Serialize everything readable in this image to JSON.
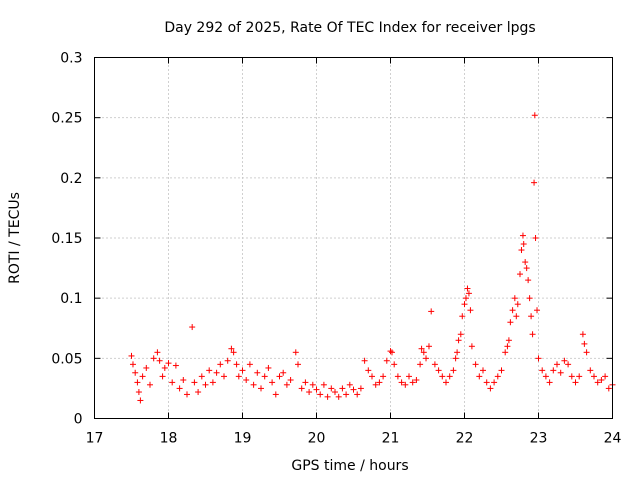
{
  "chart_data": {
    "type": "scatter",
    "title": "Day 292 of 2025, Rate Of TEC Index for receiver lpgs",
    "xlabel": "GPS time / hours",
    "ylabel": "ROTI / TECUs",
    "xlim": [
      17,
      24
    ],
    "ylim": [
      0,
      0.3
    ],
    "xticks": [
      17,
      18,
      19,
      20,
      21,
      22,
      23,
      24
    ],
    "xtick_labels": [
      "17",
      "18",
      "19",
      "20",
      "21",
      "22",
      "23",
      "24"
    ],
    "yticks": [
      0,
      0.05,
      0.1,
      0.15,
      0.2,
      0.25,
      0.3
    ],
    "ytick_labels": [
      "0",
      "0.05",
      "0.1",
      "0.15",
      "0.2",
      "0.25",
      "0.3"
    ],
    "grid": true,
    "marker": "plus",
    "series": [
      {
        "name": "ROTI",
        "color": "#ff0000",
        "points": [
          [
            17.5,
            0.052
          ],
          [
            17.52,
            0.045
          ],
          [
            17.55,
            0.038
          ],
          [
            17.58,
            0.03
          ],
          [
            17.6,
            0.022
          ],
          [
            17.62,
            0.015
          ],
          [
            17.65,
            0.035
          ],
          [
            17.7,
            0.042
          ],
          [
            17.75,
            0.028
          ],
          [
            17.8,
            0.05
          ],
          [
            17.85,
            0.055
          ],
          [
            17.88,
            0.048
          ],
          [
            17.92,
            0.035
          ],
          [
            17.95,
            0.042
          ],
          [
            18.0,
            0.046
          ],
          [
            18.05,
            0.03
          ],
          [
            18.1,
            0.044
          ],
          [
            18.15,
            0.025
          ],
          [
            18.2,
            0.032
          ],
          [
            18.25,
            0.02
          ],
          [
            18.32,
            0.076
          ],
          [
            18.35,
            0.03
          ],
          [
            18.4,
            0.022
          ],
          [
            18.45,
            0.035
          ],
          [
            18.5,
            0.028
          ],
          [
            18.55,
            0.04
          ],
          [
            18.6,
            0.03
          ],
          [
            18.65,
            0.038
          ],
          [
            18.7,
            0.045
          ],
          [
            18.75,
            0.035
          ],
          [
            18.8,
            0.048
          ],
          [
            18.85,
            0.058
          ],
          [
            18.88,
            0.055
          ],
          [
            18.92,
            0.045
          ],
          [
            18.95,
            0.035
          ],
          [
            19.0,
            0.04
          ],
          [
            19.05,
            0.032
          ],
          [
            19.1,
            0.045
          ],
          [
            19.15,
            0.028
          ],
          [
            19.2,
            0.038
          ],
          [
            19.25,
            0.025
          ],
          [
            19.3,
            0.035
          ],
          [
            19.35,
            0.042
          ],
          [
            19.4,
            0.03
          ],
          [
            19.45,
            0.02
          ],
          [
            19.5,
            0.035
          ],
          [
            19.55,
            0.038
          ],
          [
            19.6,
            0.028
          ],
          [
            19.65,
            0.032
          ],
          [
            19.72,
            0.055
          ],
          [
            19.75,
            0.045
          ],
          [
            19.8,
            0.025
          ],
          [
            19.85,
            0.03
          ],
          [
            19.9,
            0.022
          ],
          [
            19.95,
            0.028
          ],
          [
            20.0,
            0.024
          ],
          [
            20.05,
            0.02
          ],
          [
            20.1,
            0.028
          ],
          [
            20.15,
            0.018
          ],
          [
            20.2,
            0.025
          ],
          [
            20.25,
            0.022
          ],
          [
            20.3,
            0.018
          ],
          [
            20.35,
            0.025
          ],
          [
            20.4,
            0.02
          ],
          [
            20.45,
            0.028
          ],
          [
            20.5,
            0.024
          ],
          [
            20.55,
            0.02
          ],
          [
            20.6,
            0.025
          ],
          [
            20.65,
            0.048
          ],
          [
            20.7,
            0.04
          ],
          [
            20.75,
            0.035
          ],
          [
            20.8,
            0.028
          ],
          [
            20.85,
            0.03
          ],
          [
            20.9,
            0.035
          ],
          [
            20.95,
            0.048
          ],
          [
            21.0,
            0.056
          ],
          [
            21.02,
            0.055
          ],
          [
            21.05,
            0.045
          ],
          [
            21.1,
            0.035
          ],
          [
            21.15,
            0.03
          ],
          [
            21.2,
            0.028
          ],
          [
            21.25,
            0.035
          ],
          [
            21.3,
            0.03
          ],
          [
            21.35,
            0.032
          ],
          [
            21.4,
            0.045
          ],
          [
            21.42,
            0.058
          ],
          [
            21.45,
            0.055
          ],
          [
            21.48,
            0.05
          ],
          [
            21.52,
            0.06
          ],
          [
            21.55,
            0.089
          ],
          [
            21.6,
            0.045
          ],
          [
            21.65,
            0.04
          ],
          [
            21.7,
            0.035
          ],
          [
            21.75,
            0.03
          ],
          [
            21.8,
            0.035
          ],
          [
            21.85,
            0.04
          ],
          [
            21.88,
            0.05
          ],
          [
            21.9,
            0.055
          ],
          [
            21.92,
            0.065
          ],
          [
            21.95,
            0.07
          ],
          [
            21.97,
            0.085
          ],
          [
            22.0,
            0.095
          ],
          [
            22.02,
            0.1
          ],
          [
            22.04,
            0.108
          ],
          [
            22.06,
            0.104
          ],
          [
            22.08,
            0.09
          ],
          [
            22.1,
            0.06
          ],
          [
            22.15,
            0.045
          ],
          [
            22.2,
            0.035
          ],
          [
            22.25,
            0.04
          ],
          [
            22.3,
            0.03
          ],
          [
            22.35,
            0.025
          ],
          [
            22.4,
            0.03
          ],
          [
            22.45,
            0.035
          ],
          [
            22.5,
            0.04
          ],
          [
            22.55,
            0.055
          ],
          [
            22.58,
            0.06
          ],
          [
            22.6,
            0.065
          ],
          [
            22.62,
            0.08
          ],
          [
            22.65,
            0.09
          ],
          [
            22.68,
            0.1
          ],
          [
            22.7,
            0.085
          ],
          [
            22.72,
            0.095
          ],
          [
            22.75,
            0.12
          ],
          [
            22.77,
            0.14
          ],
          [
            22.79,
            0.152
          ],
          [
            22.8,
            0.145
          ],
          [
            22.82,
            0.13
          ],
          [
            22.84,
            0.125
          ],
          [
            22.86,
            0.115
          ],
          [
            22.88,
            0.1
          ],
          [
            22.9,
            0.085
          ],
          [
            22.92,
            0.07
          ],
          [
            22.95,
            0.252
          ],
          [
            22.94,
            0.196
          ],
          [
            22.96,
            0.15
          ],
          [
            22.98,
            0.09
          ],
          [
            23.0,
            0.05
          ],
          [
            23.05,
            0.04
          ],
          [
            23.1,
            0.035
          ],
          [
            23.15,
            0.03
          ],
          [
            23.2,
            0.04
          ],
          [
            23.25,
            0.045
          ],
          [
            23.3,
            0.038
          ],
          [
            23.35,
            0.048
          ],
          [
            23.4,
            0.045
          ],
          [
            23.45,
            0.035
          ],
          [
            23.5,
            0.03
          ],
          [
            23.55,
            0.035
          ],
          [
            23.6,
            0.07
          ],
          [
            23.62,
            0.062
          ],
          [
            23.65,
            0.055
          ],
          [
            23.7,
            0.04
          ],
          [
            23.75,
            0.035
          ],
          [
            23.8,
            0.03
          ],
          [
            23.85,
            0.032
          ],
          [
            23.9,
            0.035
          ],
          [
            23.95,
            0.025
          ],
          [
            24.0,
            0.028
          ]
        ]
      }
    ]
  }
}
